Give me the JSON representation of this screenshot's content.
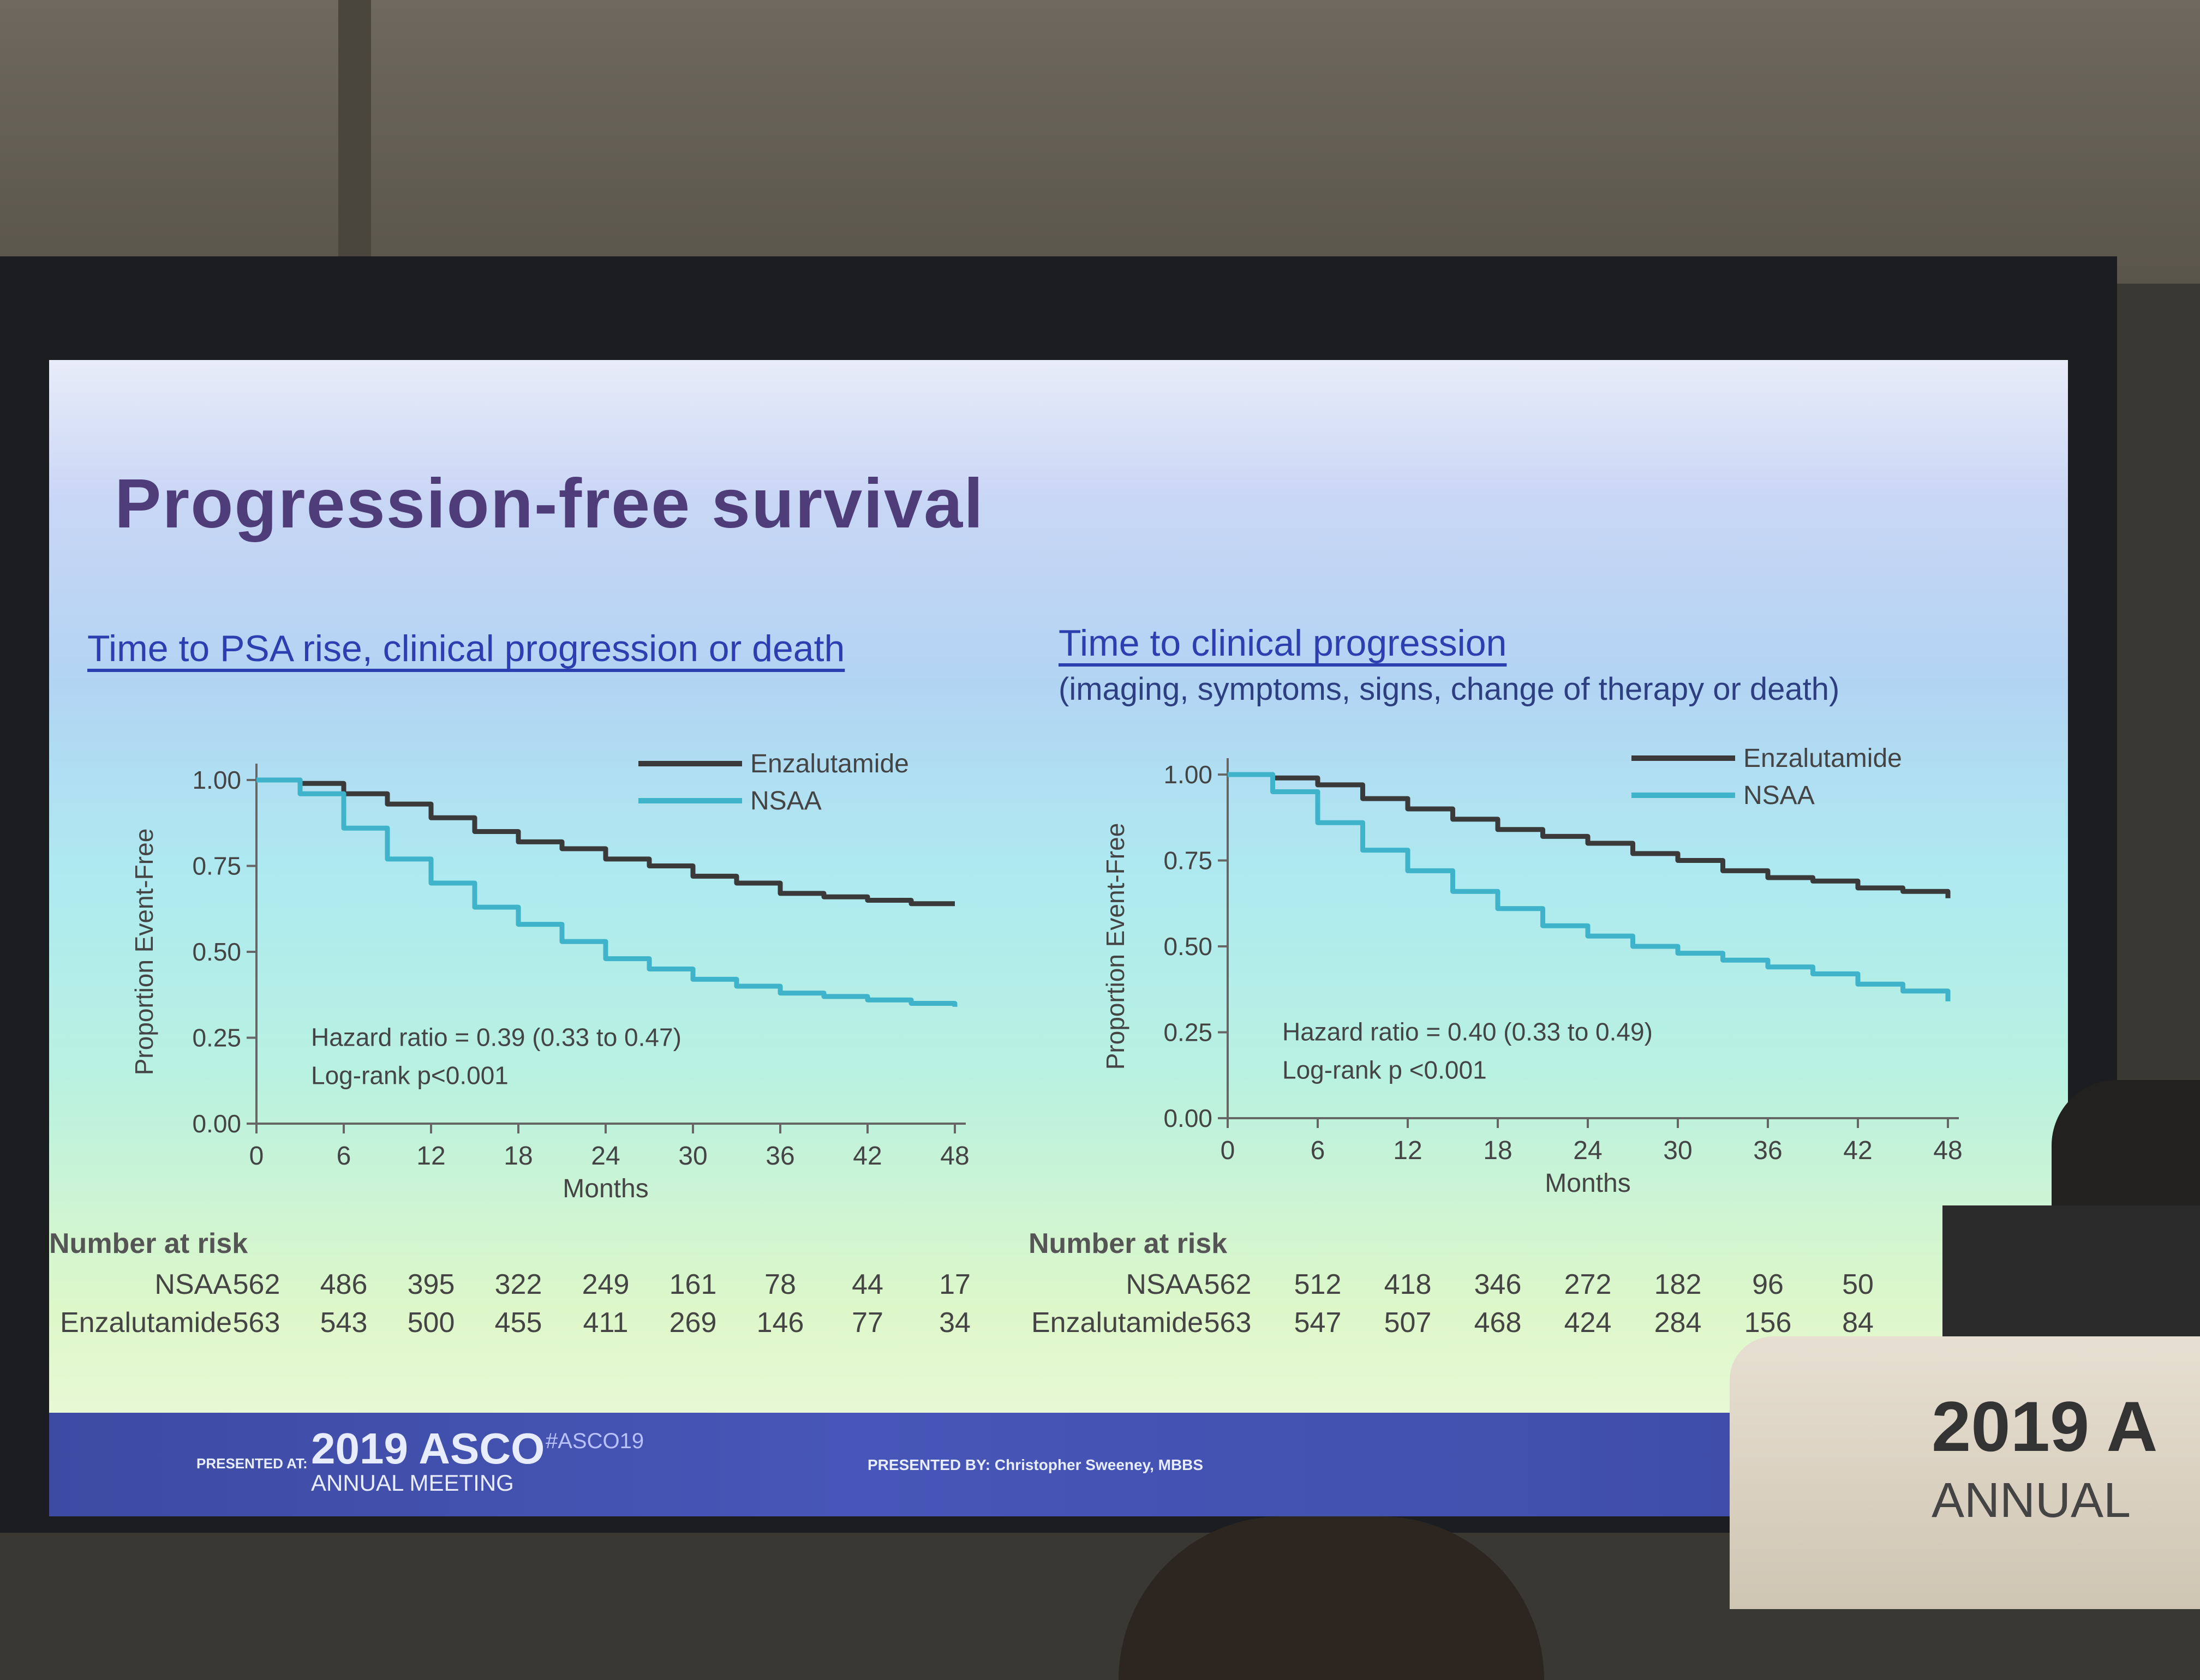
{
  "slide_title": "Progression-free survival",
  "footer": {
    "presented_at_label": "PRESENTED AT:",
    "meeting_year_brand": "2019 ASCO",
    "meeting_name": "ANNUAL MEETING",
    "hashtag": "#ASCO19",
    "presented_by": "PRESENTED BY: Christopher Sweeney, MBBS"
  },
  "podium": {
    "brand": "2019 A",
    "sub": "ANNUAL"
  },
  "colors": {
    "enzalutamide": "#3a3a3a",
    "nsaa": "#3fb3c9",
    "title": "#4e3d78",
    "link": "#2c3fb0"
  },
  "chart_data": [
    {
      "type": "line",
      "title": "Time to PSA rise, clinical progression or death",
      "subtitle": "",
      "xlabel": "Months",
      "ylabel": "Proportion Event-Free",
      "xlim": [
        0,
        48
      ],
      "ylim": [
        0,
        1
      ],
      "xticks": [
        "0",
        "6",
        "12",
        "18",
        "24",
        "30",
        "36",
        "42",
        "48"
      ],
      "yticks": [
        "0.00",
        "0.25",
        "0.50",
        "0.75",
        "1.00"
      ],
      "legend_position": "top-right",
      "annotations": [
        "Hazard ratio = 0.39 (0.33 to 0.47)",
        "Log-rank p<0.001"
      ],
      "series": [
        {
          "name": "Enzalutamide",
          "x": [
            0,
            3,
            6,
            9,
            12,
            15,
            18,
            21,
            24,
            27,
            30,
            33,
            36,
            39,
            42,
            45,
            48
          ],
          "y": [
            1.0,
            0.99,
            0.96,
            0.93,
            0.89,
            0.85,
            0.82,
            0.8,
            0.77,
            0.75,
            0.72,
            0.7,
            0.67,
            0.66,
            0.65,
            0.64,
            0.64
          ]
        },
        {
          "name": "NSAA",
          "x": [
            0,
            3,
            6,
            9,
            12,
            15,
            18,
            21,
            24,
            27,
            30,
            33,
            36,
            39,
            42,
            45,
            48
          ],
          "y": [
            1.0,
            0.96,
            0.86,
            0.77,
            0.7,
            0.63,
            0.58,
            0.53,
            0.48,
            0.45,
            0.42,
            0.4,
            0.38,
            0.37,
            0.36,
            0.35,
            0.34
          ]
        }
      ],
      "risk_table": {
        "header": "Number at risk",
        "rows": [
          {
            "label": "NSAA",
            "values": [
              "562",
              "486",
              "395",
              "322",
              "249",
              "161",
              "78",
              "44",
              "17"
            ]
          },
          {
            "label": "Enzalutamide",
            "values": [
              "563",
              "543",
              "500",
              "455",
              "411",
              "269",
              "146",
              "77",
              "34"
            ]
          }
        ]
      }
    },
    {
      "type": "line",
      "title": "Time to clinical progression",
      "subtitle": "(imaging, symptoms, signs, change of therapy or death)",
      "xlabel": "Months",
      "ylabel": "Proportion Event-Free",
      "xlim": [
        0,
        48
      ],
      "ylim": [
        0,
        1
      ],
      "xticks": [
        "0",
        "6",
        "12",
        "18",
        "24",
        "30",
        "36",
        "42",
        "48"
      ],
      "yticks": [
        "0.00",
        "0.25",
        "0.50",
        "0.75",
        "1.00"
      ],
      "legend_position": "top-right",
      "annotations": [
        "Hazard ratio = 0.40 (0.33 to 0.49)",
        "Log-rank p <0.001"
      ],
      "series": [
        {
          "name": "Enzalutamide",
          "x": [
            0,
            3,
            6,
            9,
            12,
            15,
            18,
            21,
            24,
            27,
            30,
            33,
            36,
            39,
            42,
            45,
            48
          ],
          "y": [
            1.0,
            0.99,
            0.97,
            0.93,
            0.9,
            0.87,
            0.84,
            0.82,
            0.8,
            0.77,
            0.75,
            0.72,
            0.7,
            0.69,
            0.67,
            0.66,
            0.64
          ]
        },
        {
          "name": "NSAA",
          "x": [
            0,
            3,
            6,
            9,
            12,
            15,
            18,
            21,
            24,
            27,
            30,
            33,
            36,
            39,
            42,
            45,
            48
          ],
          "y": [
            1.0,
            0.95,
            0.86,
            0.78,
            0.72,
            0.66,
            0.61,
            0.56,
            0.53,
            0.5,
            0.48,
            0.46,
            0.44,
            0.42,
            0.39,
            0.37,
            0.34
          ]
        }
      ],
      "risk_table": {
        "header": "Number at risk",
        "rows": [
          {
            "label": "NSAA",
            "values": [
              "562",
              "512",
              "418",
              "346",
              "272",
              "182",
              "96",
              "50"
            ]
          },
          {
            "label": "Enzalutamide",
            "values": [
              "563",
              "547",
              "507",
              "468",
              "424",
              "284",
              "156",
              "84"
            ]
          }
        ]
      }
    }
  ]
}
